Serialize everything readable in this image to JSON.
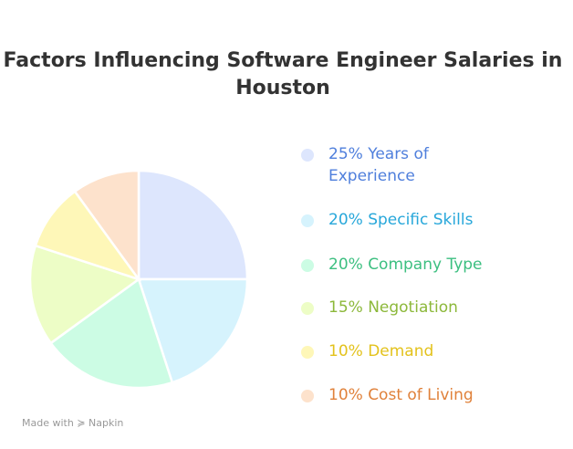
{
  "chart_data": {
    "type": "pie",
    "title": "Factors Influencing Software Engineer Salaries in Houston",
    "slices": [
      {
        "label": "25% Years of Experience",
        "value": 25,
        "fill": "#dde6fd",
        "text_color": "#4f7fdc"
      },
      {
        "label": "20% Specific Skills",
        "value": 20,
        "fill": "#d6f3fd",
        "text_color": "#27a7da"
      },
      {
        "label": "20% Company Type",
        "value": 20,
        "fill": "#ccfce4",
        "text_color": "#3cbf80"
      },
      {
        "label": "15% Negotiation",
        "value": 15,
        "fill": "#edfdc6",
        "text_color": "#8cb83a"
      },
      {
        "label": "10% Demand",
        "value": 10,
        "fill": "#fef7b8",
        "text_color": "#e3c21c"
      },
      {
        "label": "10% Cost of Living",
        "value": 10,
        "fill": "#fde2cc",
        "text_color": "#e0813a"
      }
    ],
    "legend_position": "right"
  },
  "footer": {
    "made_with": "Made with",
    "brand": "Napkin"
  }
}
